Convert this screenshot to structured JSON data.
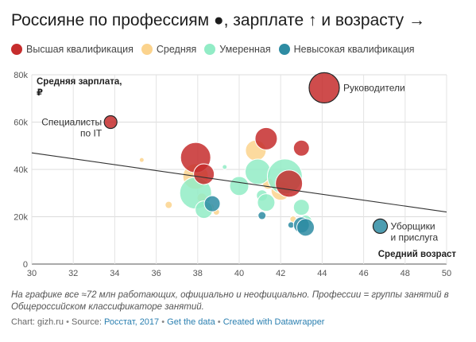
{
  "title": "Россияне по профессиям ●, зарплате ↑ и возрасту →",
  "legend": [
    {
      "label": "Высшая квалификация",
      "color": "#c62d2d"
    },
    {
      "label": "Средняя",
      "color": "#fbd38d"
    },
    {
      "label": "Умеренная",
      "color": "#92ecc6"
    },
    {
      "label": "Невысокая квалификация",
      "color": "#2e8ca3"
    }
  ],
  "note": "На графике все ≈72 млн работающих, официально и неофициально. Профессии = группы занятий в Общероссийском классификаторе занятий.",
  "source": {
    "site": "Chart: gizh.ru",
    "source_prefix": "Source:",
    "source_link": "Росстат, 2017",
    "get_data": "Get the data",
    "created_with": "Created with Datawrapper",
    "separator": "•"
  },
  "chart_data": {
    "type": "scatter",
    "title": "Россияне по профессиям ●, зарплате ↑ и возрасту →",
    "xlabel": "Средний возраст",
    "ylabel_lines": [
      "Средняя зарплата,",
      "₽"
    ],
    "xlim": [
      30,
      50
    ],
    "ylim": [
      0,
      80000
    ],
    "x_ticks": [
      "30",
      "32",
      "34",
      "36",
      "38",
      "40",
      "42",
      "44",
      "46",
      "48",
      "50"
    ],
    "y_ticks": [
      {
        "value": 0,
        "label": "0"
      },
      {
        "value": 20000,
        "label": "20k"
      },
      {
        "value": 40000,
        "label": "40k"
      },
      {
        "value": 60000,
        "label": "60k"
      },
      {
        "value": 80000,
        "label": "80k"
      }
    ],
    "grid": true,
    "legend_position": "top",
    "trendline": {
      "x": [
        30,
        50
      ],
      "y": [
        47000,
        22000
      ]
    },
    "annotations": [
      {
        "label_lines": [
          "Руководители"
        ],
        "x": 44.1,
        "y": 74500
      },
      {
        "label_lines": [
          "Специалисты",
          "по IT"
        ],
        "x": 33.8,
        "y": 60000
      },
      {
        "label_lines": [
          "Уборщики",
          "и прислуга"
        ],
        "x": 46.8,
        "y": 16000
      }
    ],
    "points": [
      {
        "category": "Средняя",
        "x": 35.3,
        "y": 44000,
        "size": 3
      },
      {
        "category": "Средняя",
        "x": 36.6,
        "y": 25000,
        "size": 4.5
      },
      {
        "category": "Средняя",
        "x": 37.9,
        "y": 37000,
        "size": 16
      },
      {
        "category": "Средняя",
        "x": 38.2,
        "y": 28000,
        "size": 6
      },
      {
        "category": "Средняя",
        "x": 38.6,
        "y": 24000,
        "size": 5
      },
      {
        "category": "Средняя",
        "x": 38.9,
        "y": 22000,
        "size": 4
      },
      {
        "category": "Средняя",
        "x": 40.8,
        "y": 48000,
        "size": 13
      },
      {
        "category": "Средняя",
        "x": 41.4,
        "y": 34000,
        "size": 7
      },
      {
        "category": "Средняя",
        "x": 42.0,
        "y": 31000,
        "size": 12
      },
      {
        "category": "Средняя",
        "x": 42.6,
        "y": 19000,
        "size": 4
      },
      {
        "category": "Умеренная",
        "x": 37.9,
        "y": 30000,
        "size": 20
      },
      {
        "category": "Умеренная",
        "x": 38.3,
        "y": 23000,
        "size": 11
      },
      {
        "category": "Умеренная",
        "x": 39.3,
        "y": 41000,
        "size": 3
      },
      {
        "category": "Умеренная",
        "x": 40.0,
        "y": 33000,
        "size": 12
      },
      {
        "category": "Умеренная",
        "x": 40.9,
        "y": 39000,
        "size": 16
      },
      {
        "category": "Умеренная",
        "x": 41.1,
        "y": 29000,
        "size": 7
      },
      {
        "category": "Умеренная",
        "x": 41.3,
        "y": 26000,
        "size": 11
      },
      {
        "category": "Умеренная",
        "x": 42.2,
        "y": 37000,
        "size": 22
      },
      {
        "category": "Умеренная",
        "x": 43.0,
        "y": 24000,
        "size": 10
      },
      {
        "category": "Умеренная",
        "x": 43.2,
        "y": 18000,
        "size": 8
      },
      {
        "category": "Высшая квалификация",
        "x": 37.9,
        "y": 45000,
        "size": 19
      },
      {
        "category": "Высшая квалификация",
        "x": 38.3,
        "y": 38000,
        "size": 13
      },
      {
        "category": "Высшая квалификация",
        "x": 41.3,
        "y": 53000,
        "size": 14
      },
      {
        "category": "Высшая квалификация",
        "x": 42.4,
        "y": 34000,
        "size": 17
      },
      {
        "category": "Высшая квалификация",
        "x": 43.0,
        "y": 49000,
        "size": 10
      },
      {
        "category": "Высшая квалификация",
        "x": 33.8,
        "y": 60000,
        "size": 8
      },
      {
        "category": "Высшая квалификация",
        "x": 44.1,
        "y": 74500,
        "size": 19
      },
      {
        "category": "Невысокая квалификация",
        "x": 38.7,
        "y": 25500,
        "size": 10
      },
      {
        "category": "Невысокая квалификация",
        "x": 41.1,
        "y": 20500,
        "size": 5
      },
      {
        "category": "Невысокая квалификация",
        "x": 42.5,
        "y": 16500,
        "size": 4
      },
      {
        "category": "Невысокая квалификация",
        "x": 43.0,
        "y": 16500,
        "size": 10
      },
      {
        "category": "Невысокая квалификация",
        "x": 43.2,
        "y": 15500,
        "size": 11
      },
      {
        "category": "Невысокая квалификация",
        "x": 46.8,
        "y": 16000,
        "size": 9
      }
    ]
  }
}
